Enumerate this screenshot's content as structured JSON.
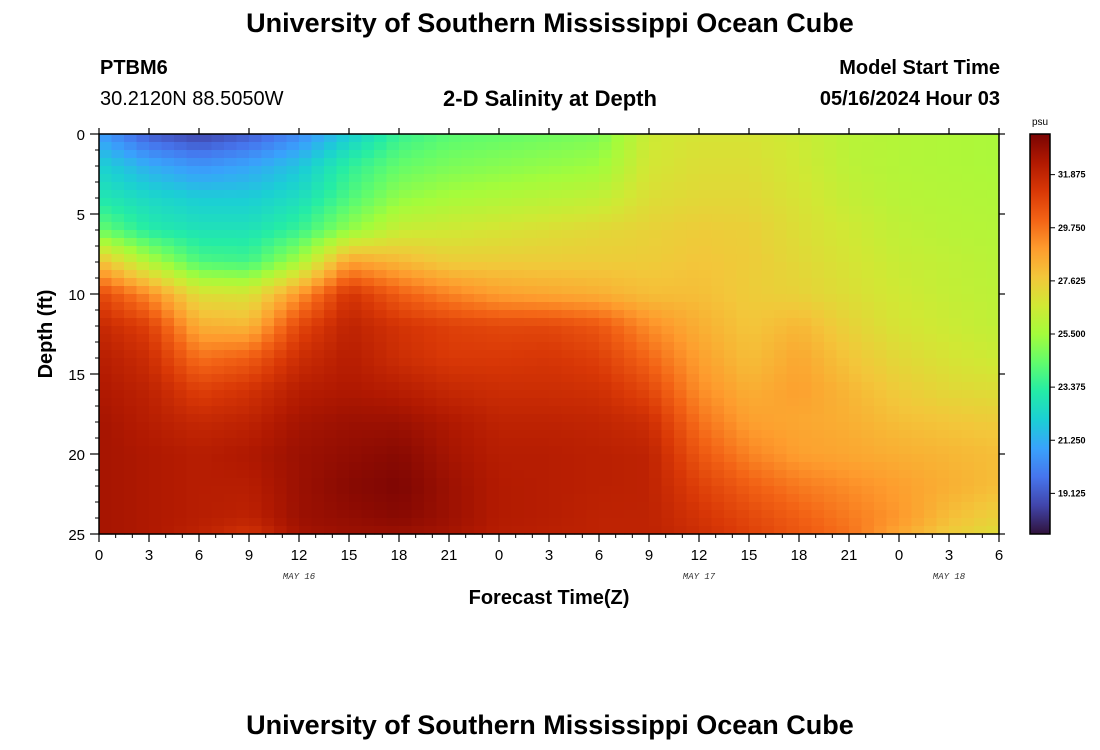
{
  "header": {
    "title": "University of Southern Mississippi Ocean Cube",
    "footer_title": "University of Southern Mississippi Ocean Cube",
    "station": "PTBM6",
    "coords": "30.2120N  88.5050W",
    "plot_title": "2-D Salinity at Depth",
    "model_start_label": "Model Start Time",
    "model_start_value": "05/16/2024 Hour 03"
  },
  "colors": {
    "colormap": [
      "#30123b",
      "#4145ab",
      "#4675ed",
      "#39a2fc",
      "#1bcfd4",
      "#24eca6",
      "#61fc6c",
      "#a4fc3b",
      "#d1e834",
      "#f3c63a",
      "#fe9b2d",
      "#f36315",
      "#d93806",
      "#b11901",
      "#7a0403"
    ]
  },
  "chart_data": {
    "type": "heatmap",
    "title": "2-D Salinity at Depth",
    "xlabel": "Forecast Time(Z)",
    "ylabel": "Depth (ft)",
    "x_hours_from_start": [
      0,
      51
    ],
    "xlim": [
      0,
      54
    ],
    "ylim": [
      0,
      25
    ],
    "x_ticks": [
      0,
      3,
      6,
      9,
      12,
      15,
      18,
      21,
      24,
      27,
      30,
      33,
      36,
      39,
      42,
      45,
      48,
      51,
      54
    ],
    "x_tick_labels": [
      "0",
      "3",
      "6",
      "9",
      "12",
      "15",
      "18",
      "21",
      "0",
      "3",
      "6",
      "9",
      "12",
      "15",
      "18",
      "21",
      "0",
      "3",
      "6"
    ],
    "y_ticks": [
      0,
      5,
      10,
      15,
      20,
      25
    ],
    "y_tick_labels": [
      "0",
      "5",
      "10",
      "15",
      "20",
      "25"
    ],
    "date_labels": [
      {
        "text": "MAY 16",
        "x": 12
      },
      {
        "text": "MAY 17",
        "x": 36
      },
      {
        "text": "MAY 18",
        "x": 51
      }
    ],
    "colorbar": {
      "unit": "psu",
      "range": [
        17.5,
        33.5
      ],
      "ticks": [
        31.875,
        29.75,
        27.625,
        25.5,
        23.375,
        21.25,
        19.125
      ],
      "tick_labels": [
        "31.875",
        "29.750",
        "27.625",
        "25.500",
        "23.375",
        "21.250",
        "19.125"
      ]
    },
    "depths_ft": [
      0,
      2,
      4,
      6,
      8,
      10,
      12,
      14,
      16,
      18,
      20,
      22,
      24,
      25
    ],
    "times_h": [
      0,
      3,
      6,
      9,
      12,
      15,
      18,
      21,
      24,
      27,
      30,
      33,
      36,
      39,
      42,
      45,
      48,
      51,
      54
    ],
    "salinity_psu": [
      [
        20.8,
        19.2,
        18.6,
        19.2,
        20.3,
        22.0,
        23.6,
        24.2,
        24.4,
        24.6,
        24.8,
        26.5,
        26.8,
        26.8,
        26.5,
        26.0,
        25.9,
        25.8,
        25.7
      ],
      [
        22.2,
        21.2,
        20.6,
        21.0,
        21.8,
        23.4,
        24.4,
        24.8,
        25.0,
        25.2,
        25.4,
        26.7,
        27.0,
        27.0,
        26.6,
        26.1,
        25.9,
        25.8,
        25.7
      ],
      [
        23.0,
        22.4,
        22.0,
        22.0,
        22.6,
        24.0,
        25.2,
        25.6,
        25.8,
        26.0,
        26.2,
        27.0,
        27.2,
        27.2,
        26.8,
        26.3,
        26.0,
        25.9,
        25.8
      ],
      [
        24.5,
        23.2,
        22.8,
        22.8,
        23.6,
        25.2,
        26.4,
        26.6,
        26.8,
        27.0,
        27.2,
        27.4,
        27.6,
        27.5,
        27.0,
        26.6,
        26.2,
        26.0,
        25.9
      ],
      [
        28.0,
        25.8,
        24.0,
        23.8,
        25.6,
        28.8,
        28.2,
        27.6,
        27.6,
        27.6,
        27.6,
        27.6,
        27.8,
        27.6,
        27.2,
        26.8,
        26.4,
        26.2,
        26.0
      ],
      [
        30.8,
        29.2,
        27.0,
        26.8,
        29.0,
        31.4,
        30.2,
        29.4,
        28.8,
        28.6,
        28.4,
        28.0,
        28.0,
        27.6,
        27.4,
        27.0,
        26.6,
        26.3,
        26.1
      ],
      [
        31.8,
        31.0,
        28.4,
        28.2,
        30.8,
        32.0,
        31.4,
        31.0,
        30.8,
        30.8,
        30.4,
        29.2,
        28.4,
        27.8,
        28.2,
        27.4,
        26.8,
        26.5,
        26.2
      ],
      [
        32.2,
        31.6,
        29.8,
        30.2,
        31.6,
        32.2,
        31.6,
        31.2,
        31.2,
        31.3,
        31.0,
        30.0,
        28.8,
        28.0,
        28.6,
        27.8,
        27.2,
        26.8,
        26.5
      ],
      [
        32.4,
        32.0,
        31.0,
        31.4,
        32.2,
        32.4,
        32.2,
        31.8,
        31.6,
        31.6,
        31.5,
        30.8,
        29.2,
        28.4,
        28.8,
        28.2,
        27.6,
        27.2,
        27.0
      ],
      [
        32.6,
        32.2,
        31.8,
        32.0,
        32.6,
        32.8,
        32.8,
        32.4,
        32.0,
        32.0,
        31.9,
        31.6,
        29.8,
        28.8,
        28.6,
        28.4,
        28.0,
        27.8,
        27.6
      ],
      [
        32.6,
        32.4,
        32.2,
        32.4,
        32.8,
        33.0,
        33.2,
        32.6,
        32.2,
        32.2,
        32.1,
        32.0,
        30.4,
        29.4,
        28.8,
        28.6,
        28.4,
        28.2,
        28.0
      ],
      [
        32.6,
        32.4,
        32.2,
        32.2,
        32.8,
        33.2,
        33.4,
        32.8,
        32.3,
        32.2,
        32.1,
        32.0,
        31.0,
        30.2,
        29.6,
        29.2,
        28.8,
        28.4,
        28.0
      ],
      [
        32.6,
        32.4,
        32.2,
        32.0,
        32.8,
        33.0,
        33.2,
        32.8,
        32.3,
        32.2,
        32.0,
        32.0,
        31.4,
        30.8,
        30.2,
        29.6,
        29.0,
        28.0,
        27.4
      ],
      [
        32.6,
        32.4,
        32.0,
        31.4,
        32.6,
        32.8,
        32.8,
        32.6,
        32.2,
        32.1,
        32.0,
        32.0,
        31.6,
        31.0,
        30.4,
        29.8,
        28.6,
        27.6,
        27.0
      ]
    ]
  }
}
